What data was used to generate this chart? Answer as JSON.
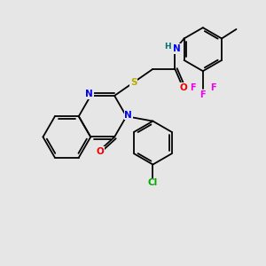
{
  "bg_color": "#e6e6e6",
  "bond_color": "#000000",
  "colors": {
    "N": "#0000ee",
    "O": "#ee0000",
    "S": "#bbaa00",
    "F": "#ee00ee",
    "Cl": "#00aa00",
    "H": "#007070",
    "C": "#000000"
  },
  "lw": 1.3,
  "fs": 7.5
}
